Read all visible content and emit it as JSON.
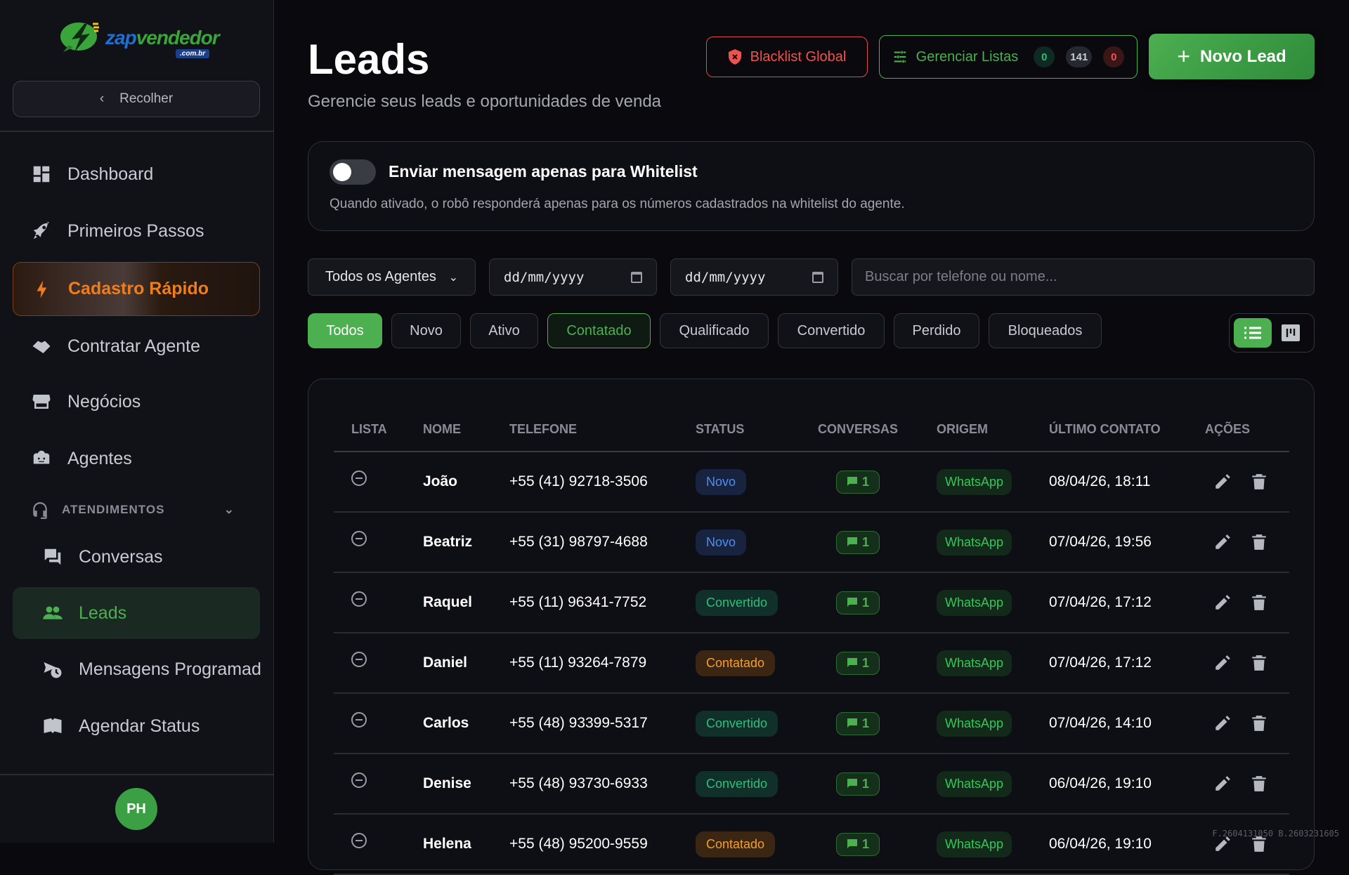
{
  "brand": {
    "name_a": "zap",
    "name_b": "vendedor",
    "tld": ".com.br"
  },
  "sidebar": {
    "collapse_label": "Recolher",
    "items": [
      {
        "label": "Dashboard",
        "icon": "dashboard-icon"
      },
      {
        "label": "Primeiros Passos",
        "icon": "rocket-icon"
      },
      {
        "label": "Cadastro Rápido",
        "icon": "bolt-icon"
      },
      {
        "label": "Contratar Agente",
        "icon": "handshake-icon"
      },
      {
        "label": "Negócios",
        "icon": "store-icon"
      },
      {
        "label": "Agentes",
        "icon": "robot-icon"
      }
    ],
    "section": {
      "label": "ATENDIMENTOS",
      "icon": "headset-icon",
      "expanded": true
    },
    "sub_items": [
      {
        "label": "Conversas",
        "icon": "chat-icon"
      },
      {
        "label": "Leads",
        "icon": "people-icon",
        "active": true
      },
      {
        "label": "Mensagens Programadas",
        "icon": "scheduled-send-icon"
      },
      {
        "label": "Agendar Status",
        "icon": "book-icon"
      }
    ],
    "avatar_initials": "PH"
  },
  "header": {
    "title": "Leads",
    "subtitle": "Gerencie seus leads e oportunidades de venda",
    "blacklist_label": "Blacklist Global",
    "lists_label": "Gerenciar Listas",
    "lists_counts": [
      "0",
      "141",
      "0"
    ],
    "new_lead_label": "Novo Lead"
  },
  "whitelist": {
    "enabled": false,
    "title": "Enviar mensagem apenas para Whitelist",
    "description": "Quando ativado, o robô responderá apenas para os números cadastrados na whitelist do agente."
  },
  "filters": {
    "agent": "Todos os Agentes",
    "date_from_placeholder": "dd/mm/yyyy",
    "date_to_placeholder": "dd/mm/yyyy",
    "search_placeholder": "Buscar por telefone ou nome..."
  },
  "tabs": [
    {
      "label": "Todos",
      "state": "active"
    },
    {
      "label": "Novo"
    },
    {
      "label": "Ativo"
    },
    {
      "label": "Contatado",
      "state": "highlight"
    },
    {
      "label": "Qualificado"
    },
    {
      "label": "Convertido"
    },
    {
      "label": "Perdido"
    },
    {
      "label": "Bloqueados"
    }
  ],
  "view_mode": "list",
  "table": {
    "columns": [
      "LISTA",
      "NOME",
      "TELEFONE",
      "STATUS",
      "CONVERSAS",
      "ORIGEM",
      "ÚLTIMO CONTATO",
      "AÇÕES"
    ],
    "rows": [
      {
        "name": "João",
        "phone": "+55 (41) 92718-3506",
        "status": "Novo",
        "conversations": "1",
        "origin": "WhatsApp",
        "last_contact": "08/04/26, 18:11"
      },
      {
        "name": "Beatriz",
        "phone": "+55 (31) 98797-4688",
        "status": "Novo",
        "conversations": "1",
        "origin": "WhatsApp",
        "last_contact": "07/04/26, 19:56"
      },
      {
        "name": "Raquel",
        "phone": "+55 (11) 96341-7752",
        "status": "Convertido",
        "conversations": "1",
        "origin": "WhatsApp",
        "last_contact": "07/04/26, 17:12"
      },
      {
        "name": "Daniel",
        "phone": "+55 (11) 93264-7879",
        "status": "Contatado",
        "conversations": "1",
        "origin": "WhatsApp",
        "last_contact": "07/04/26, 17:12"
      },
      {
        "name": "Carlos",
        "phone": "+55 (48) 93399-5317",
        "status": "Convertido",
        "conversations": "1",
        "origin": "WhatsApp",
        "last_contact": "07/04/26, 14:10"
      },
      {
        "name": "Denise",
        "phone": "+55 (48) 93730-6933",
        "status": "Convertido",
        "conversations": "1",
        "origin": "WhatsApp",
        "last_contact": "06/04/26, 19:10"
      },
      {
        "name": "Helena",
        "phone": "+55 (48) 95200-9559",
        "status": "Contatado",
        "conversations": "1",
        "origin": "WhatsApp",
        "last_contact": "06/04/26, 19:10"
      }
    ]
  },
  "build": "F.2604131050 B.2603231605",
  "colors": {
    "accent": "#4caf50",
    "danger": "#ef5350",
    "fast": "#f07d1c"
  }
}
